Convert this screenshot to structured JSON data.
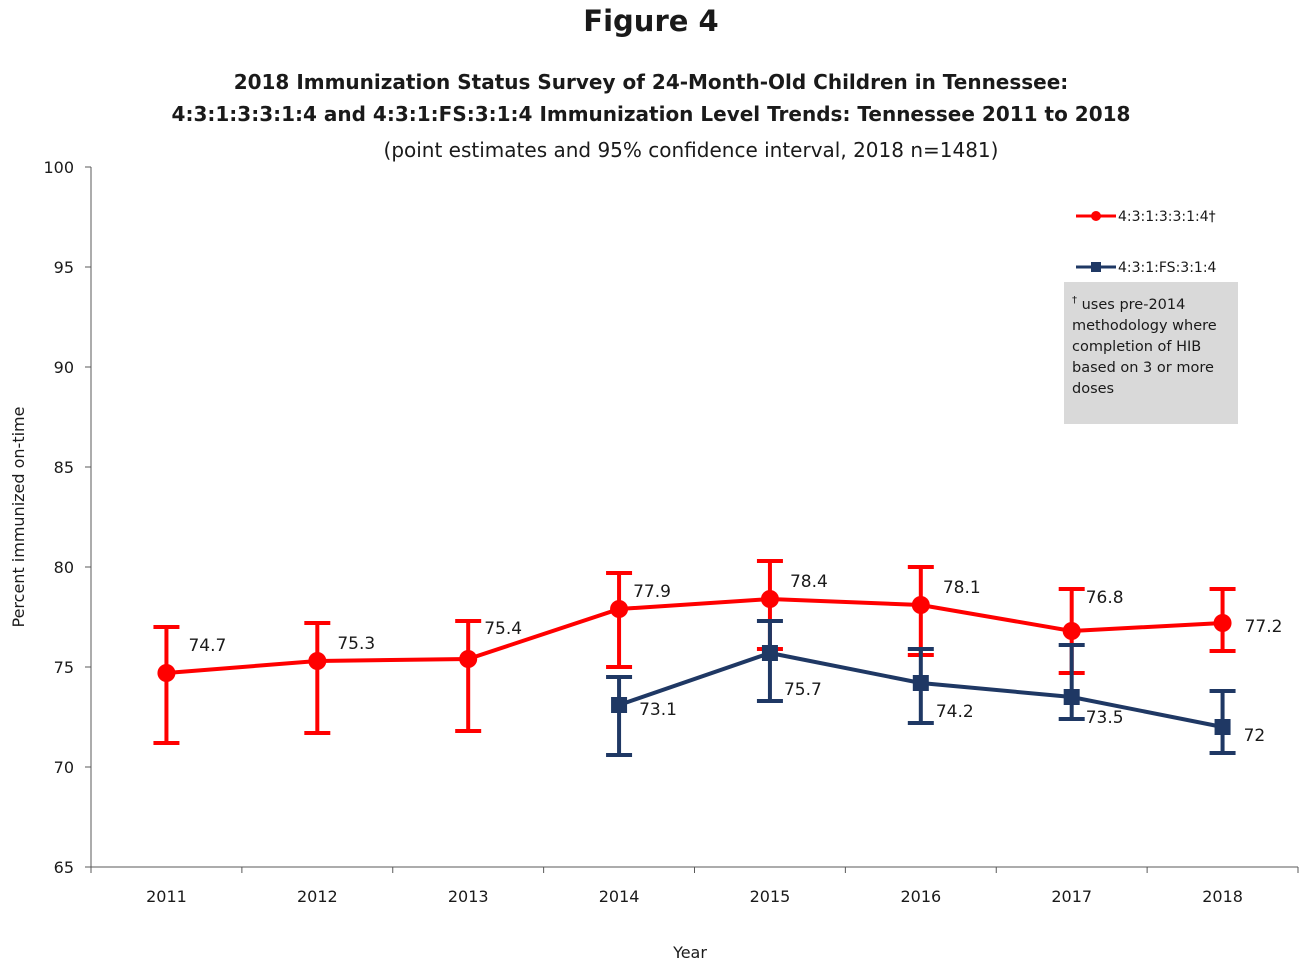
{
  "figure_label": "Figure 4",
  "title_line1": "2018 Immunization Status Survey of 24-Month-Old Children in Tennessee:",
  "title_line2": "4:3:1:3:3:1:4 and 4:3:1:FS:3:1:4 Immunization Level Trends: Tennessee 2011 to 2018",
  "subtitle": "(point estimates and 95% confidence interval, 2018 n=1481)",
  "note": {
    "dagger": "†",
    "text": "uses pre-2014 methodology where completion of HIB based on 3 or more doses",
    "color": "#d9d9d9"
  },
  "chart_data": {
    "type": "line",
    "xlabel": "Year",
    "ylabel": "Percent immunized on-time",
    "ylim": [
      65,
      100
    ],
    "yticks": [
      65,
      70,
      75,
      80,
      85,
      90,
      95,
      100
    ],
    "categories": [
      "2011",
      "2012",
      "2013",
      "2014",
      "2015",
      "2016",
      "2017",
      "2018"
    ],
    "legend_position": "top-right",
    "grid": false,
    "series": [
      {
        "name": "4:3:1:3:3:1:4†",
        "color": "#ff0000",
        "marker": "circle",
        "values": [
          74.7,
          75.3,
          75.4,
          77.9,
          78.4,
          78.1,
          76.8,
          77.2
        ],
        "labels": [
          "74.7",
          "75.3",
          "75.4",
          "77.9",
          "78.4",
          "78.1",
          "76.8",
          "77.2"
        ],
        "ci_low": [
          71.2,
          71.7,
          71.8,
          75.0,
          75.9,
          75.6,
          74.7,
          75.8
        ],
        "ci_high": [
          77.0,
          77.2,
          77.3,
          79.7,
          80.3,
          80.0,
          78.9,
          78.9
        ]
      },
      {
        "name": "4:3:1:FS:3:1:4",
        "color": "#1f3864",
        "marker": "square",
        "values": [
          null,
          null,
          null,
          73.1,
          75.7,
          74.2,
          73.5,
          72.0
        ],
        "labels": [
          null,
          null,
          null,
          "73.1",
          "75.7",
          "74.2",
          "73.5",
          "72"
        ],
        "ci_low": [
          null,
          null,
          null,
          70.6,
          73.3,
          72.2,
          72.4,
          70.7
        ],
        "ci_high": [
          null,
          null,
          null,
          74.5,
          77.3,
          75.9,
          76.1,
          73.8
        ]
      }
    ]
  }
}
